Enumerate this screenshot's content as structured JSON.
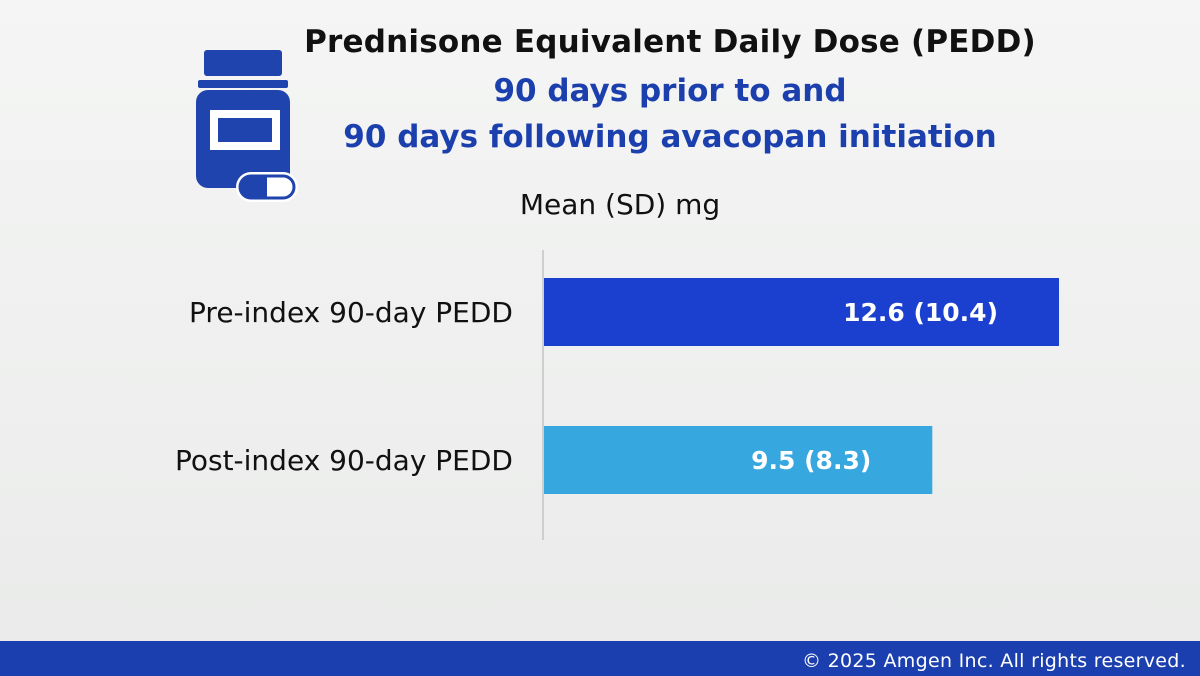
{
  "colors": {
    "bar_pre": "#1b3fcf",
    "bar_post": "#37a7e0",
    "title": "#111111",
    "subtitle": "#1c3fae",
    "footer": "#1b3fae",
    "axis": "#c4c4c4"
  },
  "icon": "medicine-bottle-and-pill-icon",
  "chart_data": {
    "type": "bar",
    "orientation": "horizontal",
    "title": "Prednisone Equivalent Daily Dose (PEDD)",
    "subtitle_lines": [
      "90 days prior to and",
      "90 days following avacopan initiation"
    ],
    "unit_label": "Mean (SD) mg",
    "categories": [
      "Pre-index 90-day PEDD",
      "Post-index 90-day PEDD"
    ],
    "values": [
      12.6,
      9.5
    ],
    "sd": [
      10.4,
      8.3
    ],
    "data_labels": [
      "12.6 (10.4)",
      "9.5 (8.3)"
    ],
    "xlim": [
      0,
      12.6
    ],
    "grid": false,
    "legend": "none"
  },
  "footer": {
    "text": "© 2025 Amgen Inc. All rights reserved."
  }
}
